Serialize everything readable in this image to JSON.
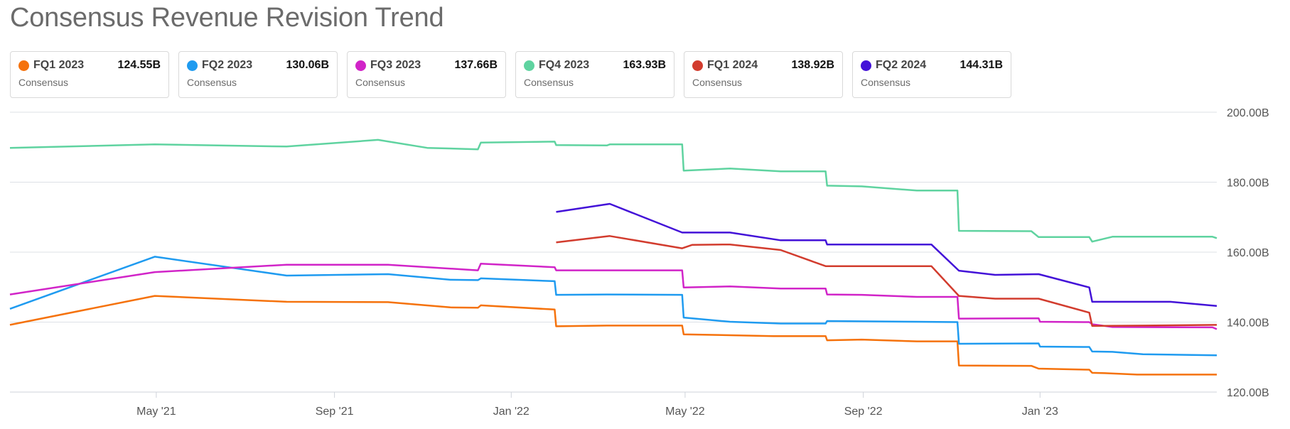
{
  "title": "Consensus Revenue Revision Trend",
  "legend": [
    {
      "name": "FQ1 2023",
      "value": "124.55B",
      "sub": "Consensus",
      "color": "#f5720c"
    },
    {
      "name": "FQ2 2023",
      "value": "130.06B",
      "sub": "Consensus",
      "color": "#1f9bf0"
    },
    {
      "name": "FQ3 2023",
      "value": "137.66B",
      "sub": "Consensus",
      "color": "#d124c8"
    },
    {
      "name": "FQ4 2023",
      "value": "163.93B",
      "sub": "Consensus",
      "color": "#5fd3a0"
    },
    {
      "name": "FQ1 2024",
      "value": "138.92B",
      "sub": "Consensus",
      "color": "#d23c2e"
    },
    {
      "name": "FQ2 2024",
      "value": "144.31B",
      "sub": "Consensus",
      "color": "#4312d8"
    }
  ],
  "chart_data": {
    "type": "line",
    "title": "Consensus Revenue Revision Trend",
    "xlabel": "",
    "ylabel": "",
    "x_range": [
      "2021-01-20",
      "2023-05-03"
    ],
    "ylim": [
      120,
      200
    ],
    "y_ticks": [
      {
        "value": 200,
        "label": "200.00B"
      },
      {
        "value": 180,
        "label": "180.00B"
      },
      {
        "value": 160,
        "label": "160.00B"
      },
      {
        "value": 140,
        "label": "140.00B"
      },
      {
        "value": 120,
        "label": "120.00B"
      }
    ],
    "x_ticks": [
      {
        "date": "2021-05-01",
        "label": "May '21"
      },
      {
        "date": "2021-09-01",
        "label": "Sep '21"
      },
      {
        "date": "2022-01-01",
        "label": "Jan '22"
      },
      {
        "date": "2022-05-01",
        "label": "May '22"
      },
      {
        "date": "2022-09-01",
        "label": "Sep '22"
      },
      {
        "date": "2023-01-01",
        "label": "Jan '23"
      }
    ],
    "grid": "horizontal",
    "legend_position": "top",
    "series": [
      {
        "name": "FQ1 2023",
        "color": "#f5720c",
        "points": [
          [
            "2021-01-20",
            139.2
          ],
          [
            "2021-04-30",
            147.5
          ],
          [
            "2021-07-30",
            145.8
          ],
          [
            "2021-10-08",
            145.7
          ],
          [
            "2021-11-20",
            144.2
          ],
          [
            "2021-12-09",
            144.1
          ],
          [
            "2021-12-11",
            144.8
          ],
          [
            "2022-01-31",
            143.6
          ],
          [
            "2022-02-01",
            138.8
          ],
          [
            "2022-03-08",
            139.0
          ],
          [
            "2022-04-29",
            139.0
          ],
          [
            "2022-04-30",
            136.5
          ],
          [
            "2022-07-01",
            136.0
          ],
          [
            "2022-08-06",
            136.0
          ],
          [
            "2022-08-07",
            134.8
          ],
          [
            "2022-08-31",
            135.0
          ],
          [
            "2022-10-08",
            134.5
          ],
          [
            "2022-11-05",
            134.5
          ],
          [
            "2022-11-06",
            127.6
          ],
          [
            "2022-12-26",
            127.5
          ],
          [
            "2022-12-31",
            126.7
          ],
          [
            "2023-02-04",
            126.4
          ],
          [
            "2023-02-06",
            125.5
          ],
          [
            "2023-02-15",
            125.4
          ],
          [
            "2023-03-09",
            125.0
          ],
          [
            "2023-05-03",
            125.0
          ]
        ]
      },
      {
        "name": "FQ2 2023",
        "color": "#1f9bf0",
        "points": [
          [
            "2021-01-20",
            143.8
          ],
          [
            "2021-04-30",
            158.7
          ],
          [
            "2021-07-30",
            153.3
          ],
          [
            "2021-10-08",
            153.7
          ],
          [
            "2021-11-20",
            152.1
          ],
          [
            "2021-12-09",
            152.0
          ],
          [
            "2021-12-11",
            152.5
          ],
          [
            "2022-01-31",
            151.7
          ],
          [
            "2022-02-01",
            147.8
          ],
          [
            "2022-03-08",
            147.9
          ],
          [
            "2022-04-29",
            147.8
          ],
          [
            "2022-04-30",
            141.3
          ],
          [
            "2022-06-01",
            140.1
          ],
          [
            "2022-07-06",
            139.6
          ],
          [
            "2022-08-06",
            139.6
          ],
          [
            "2022-08-07",
            140.3
          ],
          [
            "2022-10-08",
            140.1
          ],
          [
            "2022-11-05",
            140.0
          ],
          [
            "2022-11-06",
            133.8
          ],
          [
            "2022-12-31",
            133.9
          ],
          [
            "2023-01-01",
            133.0
          ],
          [
            "2023-02-04",
            132.9
          ],
          [
            "2023-02-06",
            131.6
          ],
          [
            "2023-02-20",
            131.5
          ],
          [
            "2023-03-13",
            130.8
          ],
          [
            "2023-05-03",
            130.5
          ]
        ]
      },
      {
        "name": "FQ3 2023",
        "color": "#d124c8",
        "points": [
          [
            "2021-01-20",
            147.9
          ],
          [
            "2021-04-30",
            154.3
          ],
          [
            "2021-07-30",
            156.4
          ],
          [
            "2021-10-08",
            156.4
          ],
          [
            "2021-12-09",
            154.8
          ],
          [
            "2021-12-11",
            156.7
          ],
          [
            "2022-01-31",
            155.7
          ],
          [
            "2022-02-01",
            154.8
          ],
          [
            "2022-03-08",
            154.8
          ],
          [
            "2022-04-29",
            154.8
          ],
          [
            "2022-04-30",
            149.9
          ],
          [
            "2022-06-01",
            150.2
          ],
          [
            "2022-07-06",
            149.6
          ],
          [
            "2022-08-06",
            149.6
          ],
          [
            "2022-08-07",
            147.9
          ],
          [
            "2022-08-31",
            147.8
          ],
          [
            "2022-10-08",
            147.2
          ],
          [
            "2022-11-05",
            147.2
          ],
          [
            "2022-11-06",
            141.0
          ],
          [
            "2022-12-31",
            141.1
          ],
          [
            "2023-01-01",
            140.1
          ],
          [
            "2023-02-04",
            140.0
          ],
          [
            "2023-02-06",
            139.4
          ],
          [
            "2023-02-20",
            138.6
          ],
          [
            "2023-04-30",
            138.5
          ],
          [
            "2023-05-03",
            138.0
          ]
        ]
      },
      {
        "name": "FQ4 2023",
        "color": "#5fd3a0",
        "points": [
          [
            "2021-01-20",
            189.8
          ],
          [
            "2021-04-30",
            190.8
          ],
          [
            "2021-07-30",
            190.2
          ],
          [
            "2021-10-01",
            192.1
          ],
          [
            "2021-11-04",
            189.8
          ],
          [
            "2021-12-09",
            189.4
          ],
          [
            "2021-12-11",
            191.3
          ],
          [
            "2022-01-31",
            191.6
          ],
          [
            "2022-02-01",
            190.6
          ],
          [
            "2022-03-08",
            190.5
          ],
          [
            "2022-03-10",
            190.8
          ],
          [
            "2022-04-29",
            190.8
          ],
          [
            "2022-04-30",
            183.3
          ],
          [
            "2022-06-01",
            183.9
          ],
          [
            "2022-07-06",
            183.1
          ],
          [
            "2022-08-06",
            183.1
          ],
          [
            "2022-08-07",
            179.0
          ],
          [
            "2022-08-31",
            178.8
          ],
          [
            "2022-10-08",
            177.6
          ],
          [
            "2022-11-05",
            177.6
          ],
          [
            "2022-11-06",
            166.1
          ],
          [
            "2022-12-26",
            166.0
          ],
          [
            "2022-12-31",
            164.3
          ],
          [
            "2023-02-04",
            164.3
          ],
          [
            "2023-02-06",
            163.0
          ],
          [
            "2023-02-20",
            164.4
          ],
          [
            "2023-04-30",
            164.4
          ],
          [
            "2023-05-03",
            164.0
          ]
        ]
      },
      {
        "name": "FQ1 2024",
        "color": "#d23c2e",
        "points": [
          [
            "2022-02-01",
            162.8
          ],
          [
            "2022-03-10",
            164.6
          ],
          [
            "2022-04-29",
            161.1
          ],
          [
            "2022-05-06",
            162.1
          ],
          [
            "2022-06-01",
            162.2
          ],
          [
            "2022-07-06",
            160.6
          ],
          [
            "2022-08-06",
            156.0
          ],
          [
            "2022-08-31",
            156.0
          ],
          [
            "2022-10-18",
            156.0
          ],
          [
            "2022-11-06",
            147.5
          ],
          [
            "2022-12-01",
            146.7
          ],
          [
            "2022-12-31",
            146.7
          ],
          [
            "2023-02-04",
            142.7
          ],
          [
            "2023-02-06",
            138.9
          ],
          [
            "2023-03-15",
            139.0
          ],
          [
            "2023-05-03",
            139.2
          ]
        ]
      },
      {
        "name": "FQ2 2024",
        "color": "#4312d8",
        "points": [
          [
            "2022-02-01",
            171.5
          ],
          [
            "2022-03-10",
            173.8
          ],
          [
            "2022-04-29",
            165.6
          ],
          [
            "2022-06-01",
            165.6
          ],
          [
            "2022-07-06",
            163.4
          ],
          [
            "2022-08-06",
            163.4
          ],
          [
            "2022-08-07",
            162.2
          ],
          [
            "2022-08-31",
            162.2
          ],
          [
            "2022-10-18",
            162.2
          ],
          [
            "2022-11-06",
            154.7
          ],
          [
            "2022-12-01",
            153.5
          ],
          [
            "2022-12-31",
            153.7
          ],
          [
            "2023-02-04",
            149.9
          ],
          [
            "2023-02-06",
            145.8
          ],
          [
            "2023-03-15",
            145.8
          ],
          [
            "2023-04-01",
            145.8
          ],
          [
            "2023-05-03",
            144.6
          ]
        ]
      }
    ]
  }
}
